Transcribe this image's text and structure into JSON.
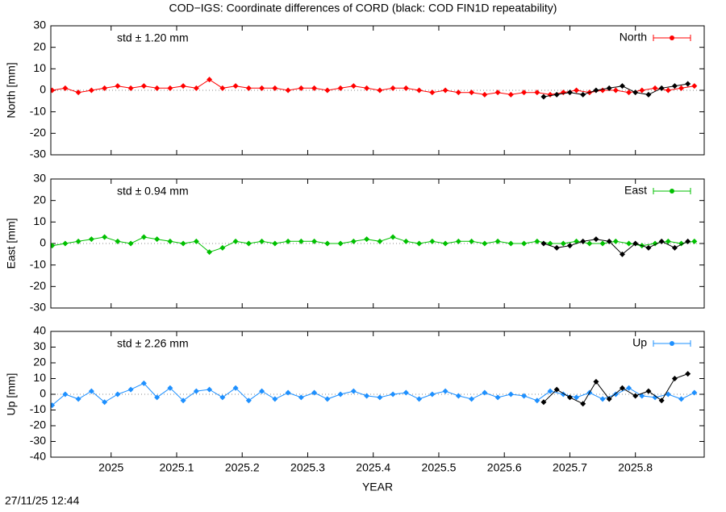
{
  "title": "COD−IGS: Coordinate differences of CORD (black: COD FIN1D repeatability)",
  "footer": "27/11/25 12:44",
  "chart_data": [
    {
      "type": "line",
      "ylabel": "North [mm]",
      "annotation": "std ± 1.20 mm",
      "legend": "top right",
      "xlim": [
        2024.908,
        2025.905
      ],
      "xticks": [
        2025,
        2025.1,
        2025.2,
        2025.3,
        2025.4,
        2025.5,
        2025.6,
        2025.7,
        2025.8
      ],
      "ylim": [
        -30,
        30
      ],
      "yticks": [
        -30,
        -20,
        -10,
        0,
        10,
        20,
        30
      ],
      "series": [
        {
          "name": "North",
          "color": "#ff0000",
          "x": [
            2024.91,
            2024.93,
            2024.95,
            2024.97,
            2024.99,
            2025.01,
            2025.03,
            2025.05,
            2025.07,
            2025.09,
            2025.11,
            2025.13,
            2025.15,
            2025.17,
            2025.19,
            2025.21,
            2025.23,
            2025.25,
            2025.27,
            2025.29,
            2025.31,
            2025.33,
            2025.35,
            2025.37,
            2025.39,
            2025.41,
            2025.43,
            2025.45,
            2025.47,
            2025.49,
            2025.51,
            2025.53,
            2025.55,
            2025.57,
            2025.59,
            2025.61,
            2025.63,
            2025.65,
            2025.67,
            2025.69,
            2025.71,
            2025.73,
            2025.75,
            2025.77,
            2025.79,
            2025.81,
            2025.83,
            2025.85,
            2025.87,
            2025.89
          ],
          "values": [
            0,
            1,
            -1,
            0,
            1,
            2,
            1,
            2,
            1,
            1,
            2,
            1,
            5,
            1,
            2,
            1,
            1,
            1,
            0,
            1,
            1,
            0,
            1,
            2,
            1,
            0,
            1,
            1,
            0,
            -1,
            0,
            -1,
            -1,
            -2,
            -1,
            -2,
            -1,
            -1,
            -2,
            -1,
            0,
            -1,
            0,
            0,
            -1,
            0,
            1,
            0,
            1,
            2
          ]
        },
        {
          "color": "#000000",
          "x": [
            2025.66,
            2025.68,
            2025.7,
            2025.72,
            2025.74,
            2025.76,
            2025.78,
            2025.8,
            2025.82,
            2025.84,
            2025.86,
            2025.88
          ],
          "values": [
            -3,
            -2,
            -1,
            -2,
            0,
            1,
            2,
            -1,
            -2,
            1,
            2,
            3
          ]
        }
      ]
    },
    {
      "type": "line",
      "ylabel": "East [mm]",
      "annotation": "std ± 0.94 mm",
      "legend": "top right",
      "xlim": [
        2024.908,
        2025.905
      ],
      "xticks": [
        2025,
        2025.1,
        2025.2,
        2025.3,
        2025.4,
        2025.5,
        2025.6,
        2025.7,
        2025.8
      ],
      "ylim": [
        -30,
        30
      ],
      "yticks": [
        -30,
        -20,
        -10,
        0,
        10,
        20,
        30
      ],
      "series": [
        {
          "name": "East",
          "color": "#00c000",
          "x": [
            2024.91,
            2024.93,
            2024.95,
            2024.97,
            2024.99,
            2025.01,
            2025.03,
            2025.05,
            2025.07,
            2025.09,
            2025.11,
            2025.13,
            2025.15,
            2025.17,
            2025.19,
            2025.21,
            2025.23,
            2025.25,
            2025.27,
            2025.29,
            2025.31,
            2025.33,
            2025.35,
            2025.37,
            2025.39,
            2025.41,
            2025.43,
            2025.45,
            2025.47,
            2025.49,
            2025.51,
            2025.53,
            2025.55,
            2025.57,
            2025.59,
            2025.61,
            2025.63,
            2025.65,
            2025.67,
            2025.69,
            2025.71,
            2025.73,
            2025.75,
            2025.77,
            2025.79,
            2025.81,
            2025.83,
            2025.85,
            2025.87,
            2025.89
          ],
          "values": [
            -1,
            0,
            1,
            2,
            3,
            1,
            0,
            3,
            2,
            1,
            0,
            1,
            -4,
            -2,
            1,
            0,
            1,
            0,
            1,
            1,
            1,
            0,
            0,
            1,
            2,
            1,
            3,
            1,
            0,
            1,
            0,
            1,
            1,
            0,
            1,
            0,
            0,
            1,
            0,
            0,
            1,
            0,
            0,
            1,
            0,
            -1,
            0,
            1,
            0,
            1
          ]
        },
        {
          "color": "#000000",
          "x": [
            2025.66,
            2025.68,
            2025.7,
            2025.72,
            2025.74,
            2025.76,
            2025.78,
            2025.8,
            2025.82,
            2025.84,
            2025.86,
            2025.88
          ],
          "values": [
            0,
            -2,
            -1,
            1,
            2,
            1,
            -5,
            0,
            -2,
            1,
            -2,
            1
          ]
        }
      ]
    },
    {
      "type": "line",
      "ylabel": "Up [mm]",
      "annotation": "std ± 2.26 mm",
      "legend": "top right",
      "xlabel": "YEAR",
      "xlim": [
        2024.908,
        2025.905
      ],
      "xticks": [
        2025,
        2025.1,
        2025.2,
        2025.3,
        2025.4,
        2025.5,
        2025.6,
        2025.7,
        2025.8
      ],
      "ylim": [
        -40,
        40
      ],
      "yticks": [
        -40,
        -30,
        -20,
        -10,
        0,
        10,
        20,
        30,
        40
      ],
      "series": [
        {
          "name": "Up",
          "color": "#1e90ff",
          "x": [
            2024.91,
            2024.93,
            2024.95,
            2024.97,
            2024.99,
            2025.01,
            2025.03,
            2025.05,
            2025.07,
            2025.09,
            2025.11,
            2025.13,
            2025.15,
            2025.17,
            2025.19,
            2025.21,
            2025.23,
            2025.25,
            2025.27,
            2025.29,
            2025.31,
            2025.33,
            2025.35,
            2025.37,
            2025.39,
            2025.41,
            2025.43,
            2025.45,
            2025.47,
            2025.49,
            2025.51,
            2025.53,
            2025.55,
            2025.57,
            2025.59,
            2025.61,
            2025.63,
            2025.65,
            2025.67,
            2025.69,
            2025.71,
            2025.73,
            2025.75,
            2025.77,
            2025.79,
            2025.81,
            2025.83,
            2025.85,
            2025.87,
            2025.89
          ],
          "values": [
            -7,
            0,
            -3,
            2,
            -5,
            0,
            3,
            7,
            -2,
            4,
            -4,
            2,
            3,
            -2,
            4,
            -4,
            2,
            -3,
            1,
            -2,
            1,
            -3,
            0,
            2,
            -1,
            -2,
            0,
            1,
            -3,
            0,
            2,
            -1,
            -3,
            1,
            -2,
            0,
            -1,
            -4,
            2,
            0,
            -2,
            1,
            -3,
            0,
            4,
            -1,
            -2,
            0,
            -3,
            1
          ]
        },
        {
          "color": "#000000",
          "x": [
            2025.66,
            2025.68,
            2025.7,
            2025.72,
            2025.74,
            2025.76,
            2025.78,
            2025.8,
            2025.82,
            2025.84,
            2025.86,
            2025.88
          ],
          "values": [
            -5,
            3,
            -2,
            -6,
            8,
            -3,
            4,
            -1,
            2,
            -4,
            10,
            13
          ]
        }
      ]
    }
  ]
}
